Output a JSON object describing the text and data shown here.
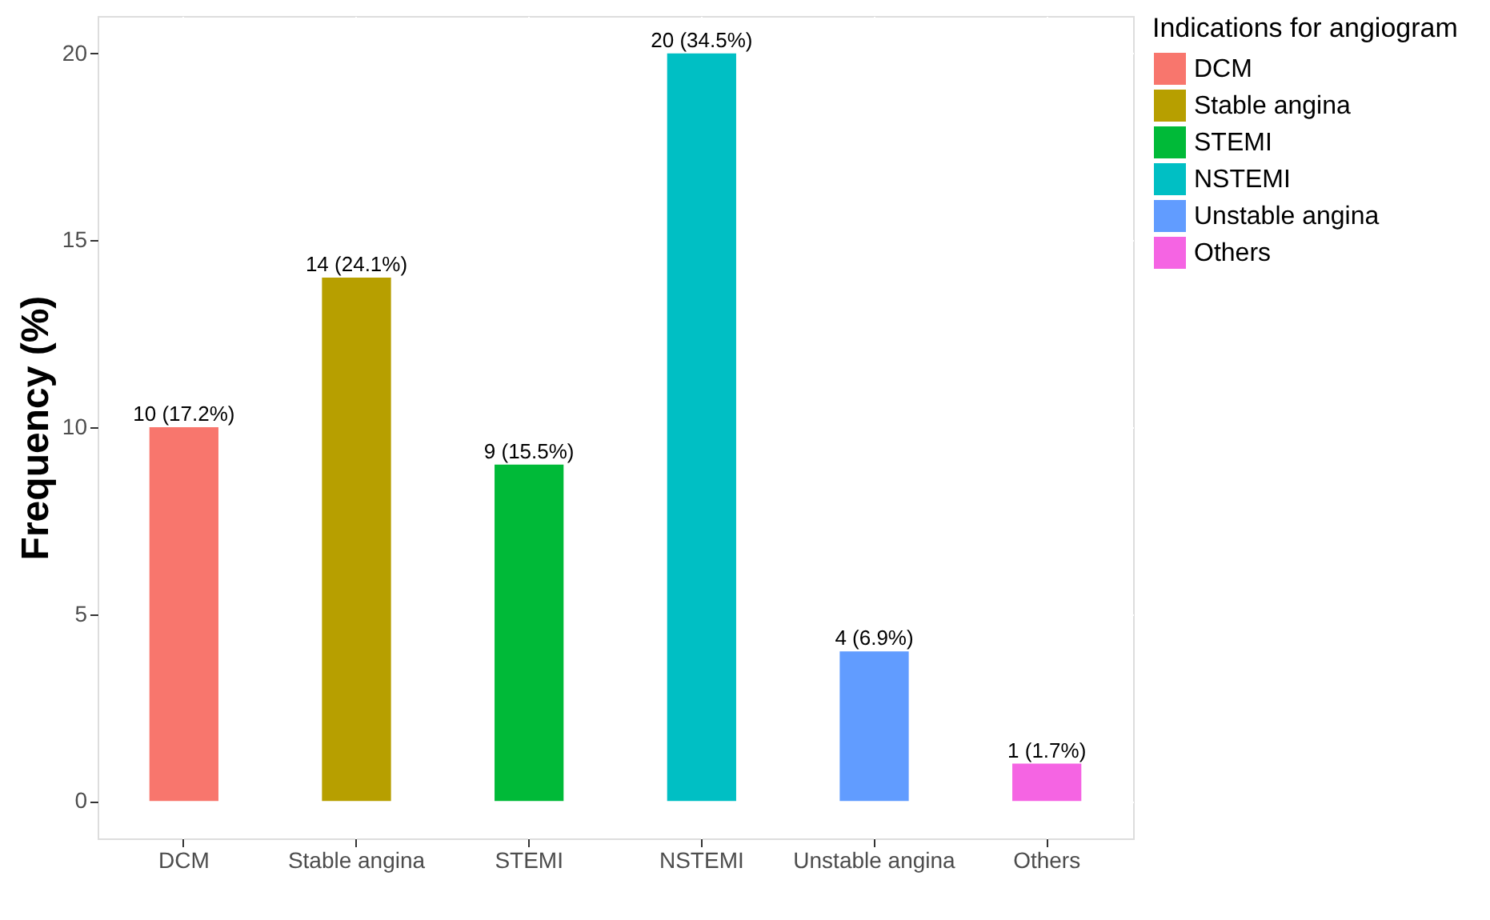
{
  "chart_data": {
    "type": "bar",
    "ylabel": "Frequency (%)",
    "legend_title": "Indications for angiogram",
    "legend": "right",
    "categories": [
      "DCM",
      "Stable angina",
      "STEMI",
      "NSTEMI",
      "Unstable angina",
      "Others"
    ],
    "series": [
      {
        "name": "DCM",
        "color": "#f8766d",
        "values": [
          10,
          null,
          null,
          null,
          null,
          null
        ],
        "value_labels": [
          "10 (17.2%)",
          null,
          null,
          null,
          null,
          null
        ]
      },
      {
        "name": "Stable angina",
        "color": "#b79f00",
        "values": [
          null,
          14,
          null,
          null,
          null,
          null
        ],
        "value_labels": [
          null,
          "14 (24.1%)",
          null,
          null,
          null,
          null
        ]
      },
      {
        "name": "STEMI",
        "color": "#00ba38",
        "values": [
          null,
          null,
          9,
          null,
          null,
          null
        ],
        "value_labels": [
          null,
          null,
          "9 (15.5%)",
          null,
          null,
          null
        ]
      },
      {
        "name": "NSTEMI",
        "color": "#00bfc4",
        "values": [
          null,
          null,
          null,
          20,
          null,
          null
        ],
        "value_labels": [
          null,
          null,
          null,
          "20 (34.5%)",
          null,
          null
        ]
      },
      {
        "name": "Unstable angina",
        "color": "#619cff",
        "values": [
          null,
          null,
          null,
          null,
          4,
          null
        ],
        "value_labels": [
          null,
          null,
          null,
          null,
          "4 (6.9%)",
          null
        ]
      },
      {
        "name": "Others",
        "color": "#f564e3",
        "values": [
          null,
          null,
          null,
          null,
          null,
          1
        ],
        "value_labels": [
          null,
          null,
          null,
          null,
          null,
          "1 (1.7%)"
        ]
      }
    ],
    "ylim": [
      -1,
      21
    ],
    "yticks": [
      0,
      5,
      10,
      15,
      20
    ],
    "grid": true
  }
}
